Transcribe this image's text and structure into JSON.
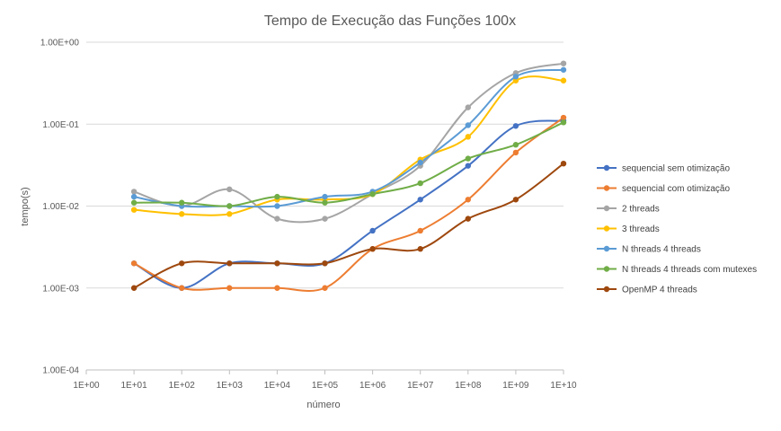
{
  "chart_data": {
    "type": "line",
    "title": "Tempo de Execução das Funções 100x",
    "xlabel": "número",
    "ylabel": "tempo(s)",
    "x_scale": "log",
    "y_scale": "log",
    "x_tick_labels": [
      "1E+00",
      "1E+01",
      "1E+02",
      "1E+03",
      "1E+04",
      "1E+05",
      "1E+06",
      "1E+07",
      "1E+08",
      "1E+09",
      "1E+10"
    ],
    "y_tick_labels": [
      "1.00E-04",
      "1.00E-03",
      "1.00E-02",
      "1.00E-01",
      "1.00E+00"
    ],
    "x": [
      10,
      100,
      1000,
      10000,
      100000,
      1000000,
      10000000,
      100000000,
      1000000000,
      10000000000
    ],
    "xlim": [
      1,
      10000000000
    ],
    "ylim": [
      0.0001,
      1
    ],
    "grid": "horizontal",
    "legend_position": "right",
    "series": [
      {
        "name": "sequencial sem otimização",
        "color": "#4472C4",
        "values": [
          0.002,
          0.001,
          0.002,
          0.002,
          0.002,
          0.005,
          0.012,
          0.031,
          0.095,
          0.11
        ]
      },
      {
        "name": "sequencial com otimização",
        "color": "#ED7D31",
        "values": [
          0.002,
          0.001,
          0.001,
          0.001,
          0.001,
          0.003,
          0.005,
          0.012,
          0.045,
          0.12
        ]
      },
      {
        "name": "2 threads",
        "color": "#A5A5A5",
        "values": [
          0.015,
          0.01,
          0.016,
          0.007,
          0.007,
          0.014,
          0.031,
          0.16,
          0.42,
          0.55
        ]
      },
      {
        "name": "3 threads",
        "color": "#FFC000",
        "values": [
          0.009,
          0.008,
          0.008,
          0.012,
          0.012,
          0.014,
          0.037,
          0.07,
          0.34,
          0.34
        ]
      },
      {
        "name": "N threads 4 threads",
        "color": "#5B9BD5",
        "values": [
          0.013,
          0.01,
          0.01,
          0.01,
          0.013,
          0.015,
          0.034,
          0.097,
          0.38,
          0.46
        ]
      },
      {
        "name": "N threads 4 threads com mutexes",
        "color": "#70AD47",
        "values": [
          0.011,
          0.011,
          0.01,
          0.013,
          0.011,
          0.014,
          0.019,
          0.038,
          0.056,
          0.105
        ]
      },
      {
        "name": "OpenMP 4 threads",
        "color": "#9E480E",
        "values": [
          0.001,
          0.002,
          0.002,
          0.002,
          0.002,
          0.003,
          0.003,
          0.007,
          0.012,
          0.033
        ]
      }
    ]
  }
}
